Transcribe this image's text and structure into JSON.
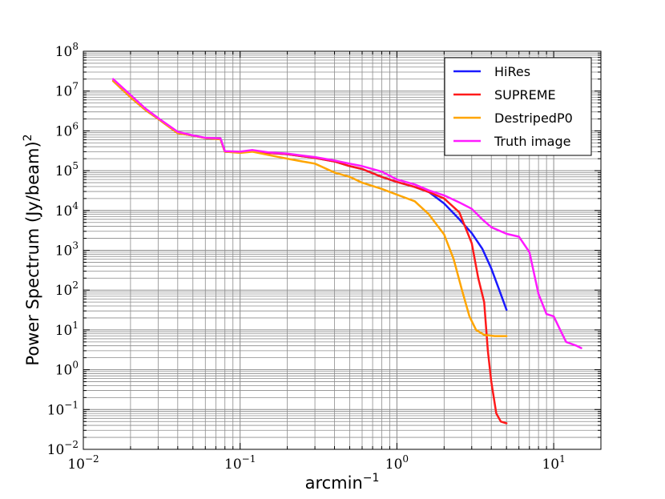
{
  "chart_data": {
    "type": "line",
    "title": "",
    "xlabel": "arcmin",
    "xlabel_sup": "−1",
    "ylabel": "Power Spectrum (Jy/beam)",
    "ylabel_sup": "2",
    "xscale": "log",
    "yscale": "log",
    "xlim": [
      0.01,
      20
    ],
    "ylim": [
      0.01,
      100000000
    ],
    "grid": true,
    "legend_position": "top-right",
    "x_ticks": [
      {
        "value": 0.01,
        "base": "10",
        "exp": "−2"
      },
      {
        "value": 0.1,
        "base": "10",
        "exp": "−1"
      },
      {
        "value": 1,
        "base": "10",
        "exp": "0"
      },
      {
        "value": 10,
        "base": "10",
        "exp": "1"
      }
    ],
    "y_ticks": [
      {
        "value": 0.01,
        "base": "10",
        "exp": "−2"
      },
      {
        "value": 0.1,
        "base": "10",
        "exp": "−1"
      },
      {
        "value": 1,
        "base": "10",
        "exp": "0"
      },
      {
        "value": 10,
        "base": "10",
        "exp": "1"
      },
      {
        "value": 100,
        "base": "10",
        "exp": "2"
      },
      {
        "value": 1000,
        "base": "10",
        "exp": "3"
      },
      {
        "value": 10000,
        "base": "10",
        "exp": "4"
      },
      {
        "value": 100000,
        "base": "10",
        "exp": "5"
      },
      {
        "value": 1000000,
        "base": "10",
        "exp": "6"
      },
      {
        "value": 10000000,
        "base": "10",
        "exp": "7"
      },
      {
        "value": 100000000,
        "base": "10",
        "exp": "8"
      }
    ],
    "series": [
      {
        "name": "HiRes",
        "color": "#1a1aff",
        "points": [
          [
            0.0155,
            18000000
          ],
          [
            0.02,
            7000000
          ],
          [
            0.025,
            3300000
          ],
          [
            0.03,
            2000000
          ],
          [
            0.04,
            880000
          ],
          [
            0.05,
            760000
          ],
          [
            0.06,
            660000
          ],
          [
            0.075,
            620000
          ],
          [
            0.08,
            300000
          ],
          [
            0.1,
            290000
          ],
          [
            0.12,
            320000
          ],
          [
            0.15,
            280000
          ],
          [
            0.2,
            260000
          ],
          [
            0.25,
            230000
          ],
          [
            0.3,
            210000
          ],
          [
            0.4,
            170000
          ],
          [
            0.5,
            130000
          ],
          [
            0.6,
            110000
          ],
          [
            0.8,
            70000
          ],
          [
            1.0,
            52000
          ],
          [
            1.3,
            39000
          ],
          [
            1.6,
            29000
          ],
          [
            2.0,
            15000
          ],
          [
            2.5,
            6000
          ],
          [
            3.0,
            2700
          ],
          [
            3.5,
            1100
          ],
          [
            4.0,
            350
          ],
          [
            4.5,
            100
          ],
          [
            5.0,
            32
          ]
        ]
      },
      {
        "name": "SUPREME",
        "color": "#ff1a1a",
        "points": [
          [
            0.0155,
            18000000
          ],
          [
            0.02,
            7000000
          ],
          [
            0.025,
            3300000
          ],
          [
            0.03,
            2000000
          ],
          [
            0.04,
            880000
          ],
          [
            0.05,
            760000
          ],
          [
            0.06,
            660000
          ],
          [
            0.075,
            620000
          ],
          [
            0.08,
            300000
          ],
          [
            0.1,
            290000
          ],
          [
            0.12,
            320000
          ],
          [
            0.15,
            280000
          ],
          [
            0.2,
            260000
          ],
          [
            0.25,
            230000
          ],
          [
            0.3,
            210000
          ],
          [
            0.4,
            170000
          ],
          [
            0.5,
            130000
          ],
          [
            0.6,
            110000
          ],
          [
            0.8,
            70000
          ],
          [
            1.0,
            52000
          ],
          [
            1.3,
            39000
          ],
          [
            1.6,
            29000
          ],
          [
            2.0,
            20000
          ],
          [
            2.5,
            9000
          ],
          [
            3.0,
            1500
          ],
          [
            3.3,
            200
          ],
          [
            3.6,
            50
          ],
          [
            3.8,
            3
          ],
          [
            4.0,
            0.5
          ],
          [
            4.3,
            0.08
          ],
          [
            4.6,
            0.05
          ],
          [
            5.0,
            0.045
          ]
        ]
      },
      {
        "name": "DestripedP0",
        "color": "#ffa500",
        "points": [
          [
            0.0155,
            18000000
          ],
          [
            0.02,
            7000000
          ],
          [
            0.025,
            3300000
          ],
          [
            0.03,
            2000000
          ],
          [
            0.04,
            880000
          ],
          [
            0.05,
            760000
          ],
          [
            0.06,
            660000
          ],
          [
            0.075,
            620000
          ],
          [
            0.08,
            300000
          ],
          [
            0.1,
            280000
          ],
          [
            0.12,
            300000
          ],
          [
            0.15,
            250000
          ],
          [
            0.2,
            200000
          ],
          [
            0.25,
            170000
          ],
          [
            0.3,
            150000
          ],
          [
            0.4,
            90000
          ],
          [
            0.5,
            70000
          ],
          [
            0.6,
            50000
          ],
          [
            0.8,
            35000
          ],
          [
            1.0,
            25000
          ],
          [
            1.3,
            17000
          ],
          [
            1.6,
            8000
          ],
          [
            2.0,
            2500
          ],
          [
            2.3,
            600
          ],
          [
            2.6,
            100
          ],
          [
            2.9,
            22
          ],
          [
            3.2,
            10
          ],
          [
            3.6,
            7.5
          ],
          [
            4.2,
            7
          ],
          [
            5.0,
            7
          ]
        ]
      },
      {
        "name": "Truth image",
        "color": "#ff1aff",
        "points": [
          [
            0.0155,
            20000000
          ],
          [
            0.02,
            8000000
          ],
          [
            0.025,
            3600000
          ],
          [
            0.03,
            2100000
          ],
          [
            0.04,
            950000
          ],
          [
            0.05,
            770000
          ],
          [
            0.06,
            670000
          ],
          [
            0.075,
            650000
          ],
          [
            0.08,
            310000
          ],
          [
            0.1,
            300000
          ],
          [
            0.12,
            330000
          ],
          [
            0.15,
            290000
          ],
          [
            0.2,
            270000
          ],
          [
            0.25,
            240000
          ],
          [
            0.3,
            220000
          ],
          [
            0.4,
            180000
          ],
          [
            0.5,
            150000
          ],
          [
            0.6,
            130000
          ],
          [
            0.8,
            95000
          ],
          [
            1.0,
            60000
          ],
          [
            1.3,
            45000
          ],
          [
            1.6,
            32000
          ],
          [
            2.0,
            24000
          ],
          [
            2.5,
            16000
          ],
          [
            3.0,
            11000
          ],
          [
            3.5,
            6000
          ],
          [
            4.0,
            3800
          ],
          [
            5.0,
            2600
          ],
          [
            6.0,
            2200
          ],
          [
            7.0,
            900
          ],
          [
            8.0,
            80
          ],
          [
            9.0,
            25
          ],
          [
            10.0,
            22
          ],
          [
            11.0,
            10
          ],
          [
            12.0,
            5
          ],
          [
            14.0,
            4
          ],
          [
            15.0,
            3.5
          ]
        ]
      }
    ]
  }
}
